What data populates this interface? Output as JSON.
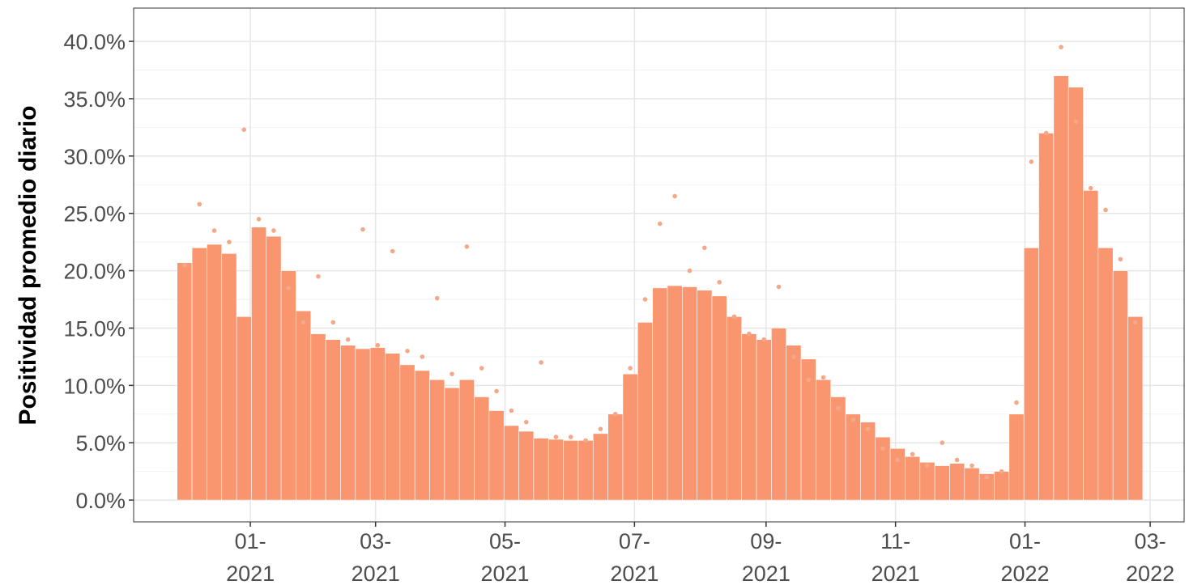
{
  "chart_data": {
    "type": "bar",
    "y_label": "Positividad promedio diario",
    "x": [
      "2020-12-01",
      "2020-12-08",
      "2020-12-15",
      "2020-12-22",
      "2020-12-29",
      "2021-01-05",
      "2021-01-12",
      "2021-01-19",
      "2021-01-26",
      "2021-02-02",
      "2021-02-09",
      "2021-02-16",
      "2021-02-23",
      "2021-03-02",
      "2021-03-09",
      "2021-03-16",
      "2021-03-23",
      "2021-03-30",
      "2021-04-06",
      "2021-04-13",
      "2021-04-20",
      "2021-04-27",
      "2021-05-04",
      "2021-05-11",
      "2021-05-18",
      "2021-05-25",
      "2021-06-01",
      "2021-06-08",
      "2021-06-15",
      "2021-06-22",
      "2021-06-29",
      "2021-07-06",
      "2021-07-13",
      "2021-07-20",
      "2021-07-27",
      "2021-08-03",
      "2021-08-10",
      "2021-08-17",
      "2021-08-24",
      "2021-08-31",
      "2021-09-07",
      "2021-09-14",
      "2021-09-21",
      "2021-09-28",
      "2021-10-05",
      "2021-10-12",
      "2021-10-19",
      "2021-10-26",
      "2021-11-02",
      "2021-11-09",
      "2021-11-16",
      "2021-11-23",
      "2021-11-30",
      "2021-12-07",
      "2021-12-14",
      "2021-12-21",
      "2021-12-28",
      "2022-01-04",
      "2022-01-11",
      "2022-01-18",
      "2022-01-25",
      "2022-02-01",
      "2022-02-08",
      "2022-02-15",
      "2022-02-22"
    ],
    "series": [
      {
        "type": "bar",
        "color": "#f9966f",
        "values": [
          20.7,
          22.0,
          22.3,
          21.5,
          16.0,
          23.8,
          23.0,
          20.0,
          16.5,
          14.5,
          14.0,
          13.5,
          13.2,
          13.3,
          12.8,
          11.8,
          11.3,
          10.5,
          9.8,
          10.5,
          9.0,
          7.8,
          6.5,
          6.0,
          5.4,
          5.3,
          5.2,
          5.2,
          5.8,
          7.5,
          11,
          15.5,
          18.5,
          18.7,
          18.6,
          18.3,
          17.8,
          16.0,
          14.5,
          14.0,
          15.0,
          13.5,
          12.3,
          10.5,
          9.0,
          7.5,
          6.8,
          5.5,
          4.5,
          3.8,
          3.3,
          3.0,
          3.2,
          2.8,
          2.3,
          2.5,
          7.5,
          22,
          32,
          37,
          36,
          27,
          22,
          20,
          16
        ]
      },
      {
        "type": "scatter",
        "color": "#f4a88a",
        "values": [
          20.5,
          25.8,
          23.5,
          22.5,
          32.3,
          24.5,
          23.5,
          18.5,
          15.5,
          19.5,
          15.5,
          14.0,
          23.6,
          13.5,
          21.7,
          13.0,
          12.5,
          17.6,
          11.0,
          22.1,
          11.5,
          9.5,
          7.8,
          6.8,
          12.0,
          5.5,
          5.5,
          5.2,
          6.2,
          7.5,
          11.5,
          17.5,
          24.1,
          26.5,
          20.0,
          22.0,
          19.0,
          16.0,
          14.5,
          14.0,
          18.6,
          12.5,
          10.5,
          10.7,
          8.0,
          7.0,
          6.2,
          4.5,
          3.5,
          4.0,
          3.0,
          5.0,
          3.5,
          3.0,
          2.0,
          2.5,
          8.5,
          29.5,
          32.0,
          39.5,
          33.0,
          27.2,
          25.3,
          21.0,
          15.5
        ]
      }
    ],
    "xlim": [
      "2020-11-07",
      "2022-03-17"
    ],
    "xticks": [
      {
        "value": "2021-01-01",
        "label": "01-\n2021"
      },
      {
        "value": "2021-03-01",
        "label": "03-\n2021"
      },
      {
        "value": "2021-05-01",
        "label": "05-\n2021"
      },
      {
        "value": "2021-07-01",
        "label": "07-\n2021"
      },
      {
        "value": "2021-09-01",
        "label": "09-\n2021"
      },
      {
        "value": "2021-11-01",
        "label": "11-\n2021"
      },
      {
        "value": "2022-01-01",
        "label": "01-\n2022"
      },
      {
        "value": "2022-03-01",
        "label": "03-\n2022"
      }
    ],
    "ylim": [
      -1.9,
      42.9
    ],
    "yticks": [
      {
        "value": 0,
        "label": "0.0%"
      },
      {
        "value": 5,
        "label": "5.0%"
      },
      {
        "value": 10,
        "label": "10.0%"
      },
      {
        "value": 15,
        "label": "15.0%"
      },
      {
        "value": 20,
        "label": "20.0%"
      },
      {
        "value": 25,
        "label": "25.0%"
      },
      {
        "value": 30,
        "label": "30.0%"
      },
      {
        "value": 35,
        "label": "35.0%"
      },
      {
        "value": 40,
        "label": "40.0%"
      }
    ],
    "grid": true
  }
}
